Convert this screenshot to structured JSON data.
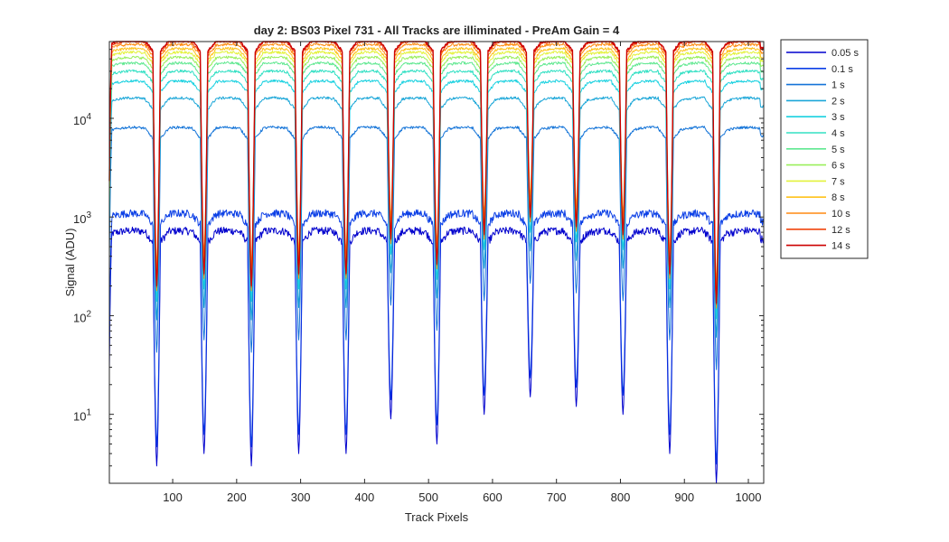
{
  "chart_data": {
    "type": "line",
    "title": "day 2: BS03  Pixel 731 - All Tracks are illiminated - PreAm Gain = 4",
    "xlabel": "Track Pixels",
    "ylabel": "Signal (ADU)",
    "xlim": [
      1,
      1024
    ],
    "ylim": [
      2,
      60000
    ],
    "yscale": "log",
    "grid": false,
    "legend_position": "outside-top-right",
    "x_ticks": [
      100,
      200,
      300,
      400,
      500,
      600,
      700,
      800,
      900,
      1000
    ],
    "y_ticks": [
      {
        "value": 10,
        "base": "10",
        "exp": "1"
      },
      {
        "value": 100,
        "base": "10",
        "exp": "2"
      },
      {
        "value": 1000,
        "base": "10",
        "exp": "3"
      },
      {
        "value": 10000,
        "base": "10",
        "exp": "4"
      }
    ],
    "track_gaps_x": [
      75,
      149,
      223,
      297,
      371,
      441,
      513,
      587,
      659,
      731,
      804,
      877,
      950
    ],
    "gap_minima_lowest_series": [
      3,
      4,
      3,
      4,
      4,
      9,
      5,
      10,
      15,
      12,
      10,
      4,
      2
    ],
    "series": [
      {
        "name": "0.05 s",
        "plateau": 700,
        "color": "#0000cd"
      },
      {
        "name": "0.1 s",
        "plateau": 1050,
        "color": "#0b3fe6"
      },
      {
        "name": "1 s",
        "plateau": 7800,
        "color": "#1474d8"
      },
      {
        "name": "2 s",
        "plateau": 15500,
        "color": "#1aa6d8"
      },
      {
        "name": "3 s",
        "plateau": 23000,
        "color": "#1ad1e0"
      },
      {
        "name": "4 s",
        "plateau": 29000,
        "color": "#33e0c4"
      },
      {
        "name": "5 s",
        "plateau": 35000,
        "color": "#5fe890"
      },
      {
        "name": "6 s",
        "plateau": 40000,
        "color": "#9aef5c"
      },
      {
        "name": "7 s",
        "plateau": 45000,
        "color": "#e3f23a"
      },
      {
        "name": "8 s",
        "plateau": 49000,
        "color": "#ffc21a"
      },
      {
        "name": "10 s",
        "plateau": 54000,
        "color": "#ff8a10"
      },
      {
        "name": "12 s",
        "plateau": 58000,
        "color": "#f0440c"
      },
      {
        "name": "14 s",
        "plateau": 60000,
        "color": "#cc0000"
      }
    ]
  }
}
